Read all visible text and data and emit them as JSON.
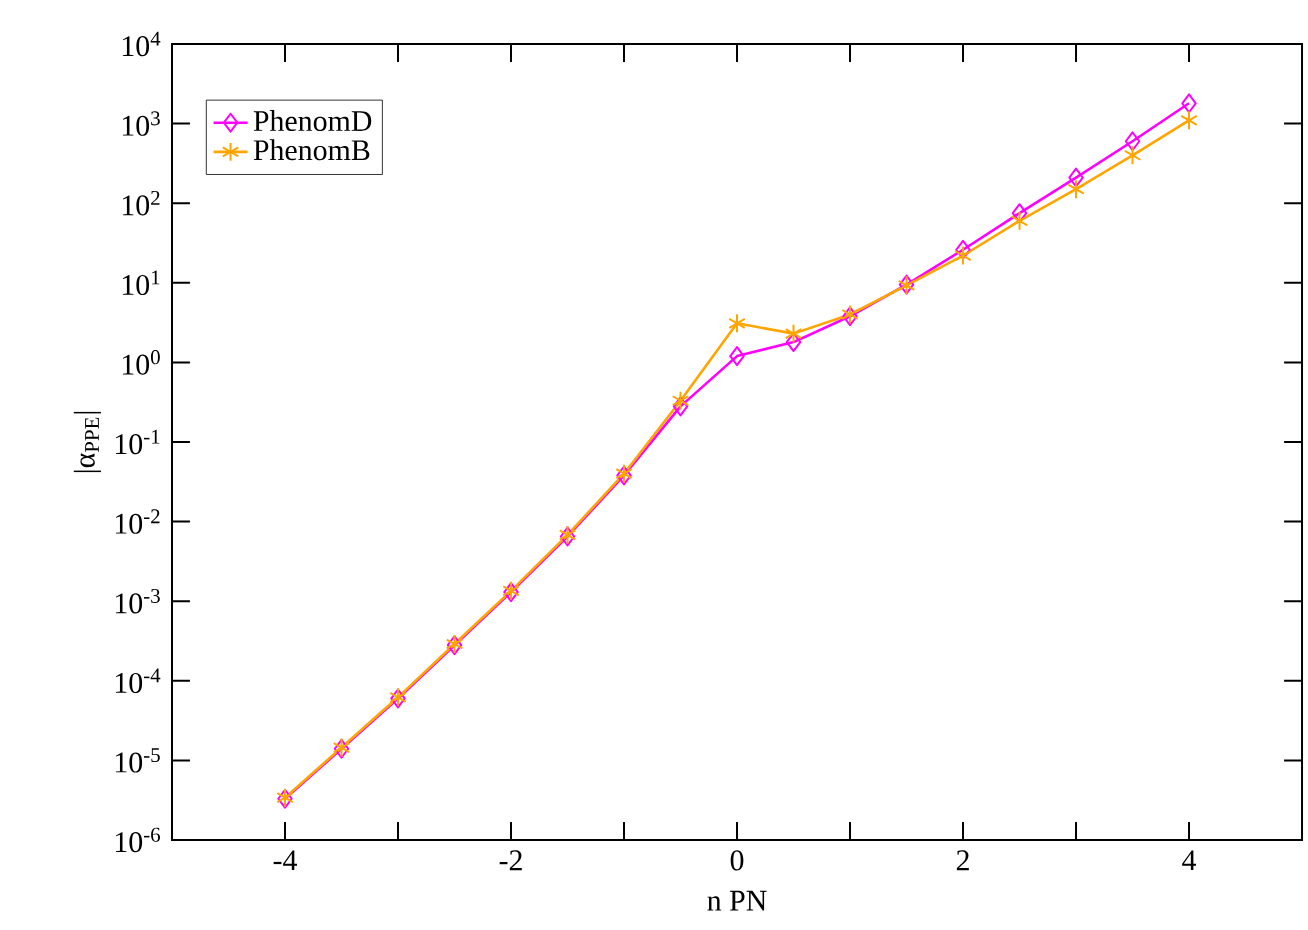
{
  "chart_data": {
    "type": "line",
    "xlabel": "n PN",
    "ylabel": "|α$_{PPE}$|",
    "log": "y",
    "grid": false,
    "legend": "top left",
    "x": [
      -4,
      -3.5,
      -3,
      -2.5,
      -2,
      -1.5,
      -1,
      -0.5,
      0,
      0.5,
      1,
      1.5,
      2,
      2.5,
      3,
      3.5,
      4
    ],
    "xlim": [
      -5,
      5
    ],
    "xticks": [
      -4,
      {
        "value": -3,
        "label": null
      },
      -2,
      {
        "value": -1,
        "label": null
      },
      0,
      {
        "value": 1,
        "label": null
      },
      2,
      {
        "value": 3,
        "label": null
      },
      4
    ],
    "ylim": [
      1e-06,
      10000.0
    ],
    "yticks": [
      {
        "value": 1e-06,
        "label": "10$^{-6}$"
      },
      {
        "value": 1e-05,
        "label": "10$^{-5}$"
      },
      {
        "value": 0.0001,
        "label": "10$^{-4}$"
      },
      {
        "value": 0.001,
        "label": "10$^{-3}$"
      },
      {
        "value": 0.01,
        "label": "10$^{-2}$"
      },
      {
        "value": 0.1,
        "label": "10$^{-1}$"
      },
      {
        "value": 1,
        "label": "10$^{0}$"
      },
      {
        "value": 10,
        "label": "10$^{1}$"
      },
      {
        "value": 100,
        "label": "10$^{2}$"
      },
      {
        "value": 1000,
        "label": "10$^{3}$"
      },
      {
        "value": 10000,
        "label": "10$^{4}$"
      }
    ],
    "series": [
      {
        "name": "PhenomD",
        "color": "#ff00ff",
        "marker": "diamond",
        "values": [
          3.3e-06,
          1.4e-05,
          6e-05,
          0.00028,
          0.0013,
          0.0065,
          0.038,
          0.28,
          1.2,
          1.8,
          3.8,
          9.5,
          26,
          75,
          210,
          600,
          1800
        ]
      },
      {
        "name": "PhenomB",
        "color": "#ffa500",
        "marker": "cross",
        "values": [
          3.4e-06,
          1.45e-05,
          6.2e-05,
          0.00029,
          0.00135,
          0.0068,
          0.04,
          0.33,
          3.1,
          2.3,
          4.0,
          9.3,
          22,
          60,
          150,
          400,
          1100
        ]
      }
    ]
  }
}
